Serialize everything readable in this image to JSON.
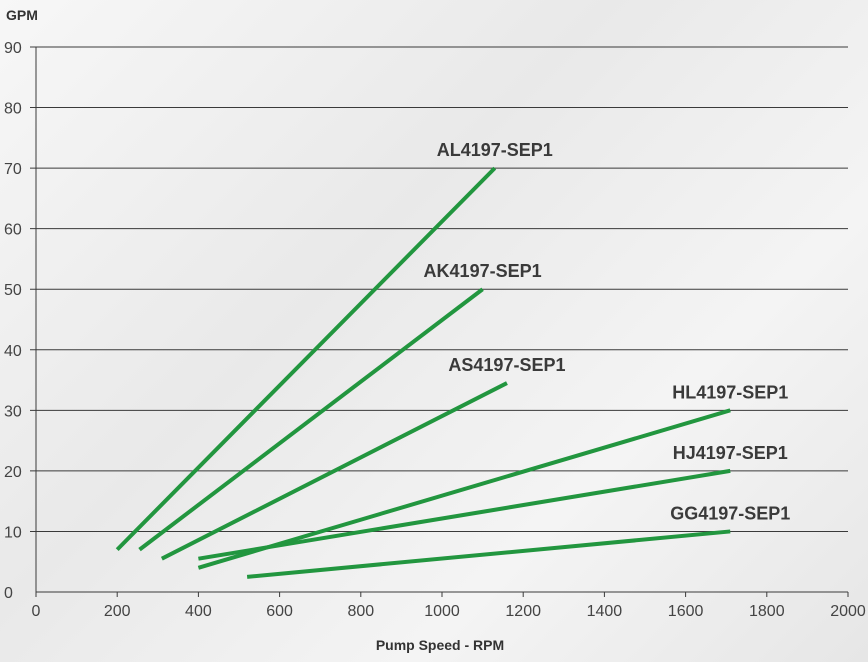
{
  "chart_data": {
    "type": "line",
    "ylabel": "GPM",
    "xlabel": "Pump Speed - RPM",
    "xlim": [
      0,
      2000
    ],
    "ylim": [
      0,
      90
    ],
    "xticks": [
      0,
      200,
      400,
      600,
      800,
      1000,
      1200,
      1400,
      1600,
      1800,
      2000
    ],
    "yticks": [
      0,
      10,
      20,
      30,
      40,
      50,
      60,
      70,
      80,
      90
    ],
    "grid": "horizontal",
    "line_color": "#22963f",
    "series": [
      {
        "name": "AL4197-SEP1",
        "x": [
          200,
          1130
        ],
        "y": [
          7,
          70
        ]
      },
      {
        "name": "AK4197-SEP1",
        "x": [
          255,
          1100
        ],
        "y": [
          7,
          50
        ]
      },
      {
        "name": "AS4197-SEP1",
        "x": [
          310,
          1160
        ],
        "y": [
          5.5,
          34.5
        ]
      },
      {
        "name": "HL4197-SEP1",
        "x": [
          400,
          1710
        ],
        "y": [
          4,
          30
        ]
      },
      {
        "name": "HJ4197-SEP1",
        "x": [
          400,
          1710
        ],
        "y": [
          5.5,
          20
        ]
      },
      {
        "name": "GG4197-SEP1",
        "x": [
          520,
          1710
        ],
        "y": [
          2.5,
          10
        ]
      }
    ]
  }
}
